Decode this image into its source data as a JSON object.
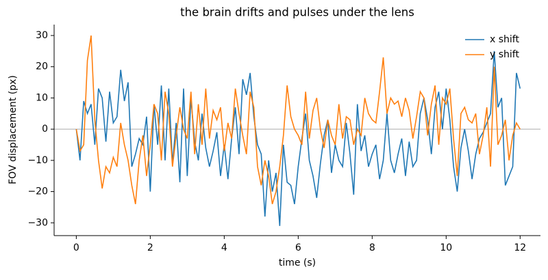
{
  "chart_data": {
    "type": "line",
    "title": "the brain drifts and pulses under the lens",
    "xlabel": "time (s)",
    "ylabel": "FOV displacement (px)",
    "x": [
      0,
      0.1,
      0.2,
      0.3,
      0.4,
      0.5,
      0.6,
      0.7,
      0.8,
      0.9,
      1,
      1.1,
      1.2,
      1.3,
      1.4,
      1.5,
      1.6,
      1.7,
      1.8,
      1.9,
      2,
      2.1,
      2.2,
      2.3,
      2.4,
      2.5,
      2.6,
      2.7,
      2.8,
      2.9,
      3,
      3.1,
      3.2,
      3.3,
      3.4,
      3.5,
      3.6,
      3.7,
      3.8,
      3.9,
      4,
      4.1,
      4.2,
      4.3,
      4.4,
      4.5,
      4.6,
      4.7,
      4.8,
      4.9,
      5,
      5.1,
      5.2,
      5.3,
      5.4,
      5.5,
      5.6,
      5.7,
      5.8,
      5.9,
      6,
      6.1,
      6.2,
      6.3,
      6.4,
      6.5,
      6.6,
      6.7,
      6.8,
      6.9,
      7,
      7.1,
      7.2,
      7.3,
      7.4,
      7.5,
      7.6,
      7.7,
      7.8,
      7.9,
      8,
      8.1,
      8.2,
      8.3,
      8.4,
      8.5,
      8.6,
      8.7,
      8.8,
      8.9,
      9,
      9.1,
      9.2,
      9.3,
      9.4,
      9.5,
      9.6,
      9.7,
      9.8,
      9.9,
      10,
      10.1,
      10.2,
      10.3,
      10.4,
      10.5,
      10.6,
      10.7,
      10.8,
      10.9,
      11,
      11.1,
      11.2,
      11.3,
      11.4,
      11.5,
      11.6,
      11.7,
      11.8,
      11.9,
      12
    ],
    "series": [
      {
        "name": "x shift",
        "color": "#1f77b4",
        "values": [
          0,
          -10,
          9,
          5,
          8,
          -5,
          13,
          10,
          -4,
          12,
          2,
          4,
          19,
          9,
          15,
          -12,
          -8,
          -3,
          -5,
          4,
          -20,
          8,
          -5,
          14,
          -10,
          13,
          -11,
          2,
          -17,
          13,
          -15,
          10,
          -4,
          -10,
          5,
          -6,
          -12,
          -7,
          -1,
          -15,
          -5,
          -16,
          -3,
          7,
          -8,
          16,
          11,
          18,
          4,
          -5,
          -8,
          -28,
          -10,
          -20,
          -14,
          -31,
          -5,
          -17,
          -18,
          -24,
          -12,
          -3,
          5,
          -10,
          -15,
          -22,
          -11,
          -2,
          3,
          -14,
          -5,
          -10,
          -12,
          2,
          -8,
          -21,
          8,
          -7,
          -2,
          -12,
          -8,
          -5,
          -16,
          -10,
          5,
          -10,
          -14,
          -8,
          -3,
          -15,
          -4,
          -12,
          -10,
          5,
          10,
          3,
          -8,
          7,
          12,
          0,
          13,
          3,
          -12,
          -20,
          -6,
          0,
          -7,
          -16,
          -8,
          -3,
          -1,
          2,
          5,
          25,
          7,
          10,
          -18,
          -15,
          -12,
          18,
          13
        ]
      },
      {
        "name": "y shift",
        "color": "#ff7f0e",
        "values": [
          0,
          -7,
          -5,
          22,
          30,
          3,
          -10,
          -19,
          -12,
          -14,
          -9,
          -12,
          2,
          -5,
          -10,
          -18,
          -24,
          -10,
          -2,
          -15,
          -5,
          8,
          5,
          -10,
          12,
          5,
          -12,
          -2,
          7,
          0,
          -3,
          12,
          -8,
          8,
          -5,
          13,
          -3,
          6,
          3,
          7,
          -7,
          2,
          -3,
          13,
          5,
          -2,
          -8,
          12,
          7,
          -12,
          -18,
          -10,
          -15,
          -24,
          -20,
          -12,
          -2,
          14,
          4,
          0,
          -2,
          -5,
          12,
          -3,
          6,
          10,
          0,
          -6,
          3,
          -2,
          -5,
          8,
          -3,
          4,
          3,
          -5,
          0,
          -2,
          10,
          5,
          3,
          2,
          12,
          23,
          5,
          10,
          8,
          9,
          4,
          10,
          6,
          -3,
          4,
          12,
          10,
          -2,
          8,
          14,
          -5,
          10,
          8,
          13,
          -3,
          -15,
          5,
          7,
          3,
          2,
          5,
          -8,
          -2,
          7,
          -12,
          20,
          -5,
          -2,
          3,
          -10,
          -2,
          2,
          0
        ]
      }
    ],
    "xlim": [
      -0.6,
      12.55
    ],
    "ylim": [
      -34.1,
      33.5
    ],
    "xticks": [
      0,
      2,
      4,
      6,
      8,
      10,
      12
    ],
    "yticks": [
      {
        "value": -30,
        "label": "−30"
      },
      {
        "value": -20,
        "label": "−20"
      },
      {
        "value": -10,
        "label": "−10"
      },
      0,
      10,
      20,
      30
    ],
    "hline": 0,
    "hline_color": "#aaaaaa",
    "legend": "upper right"
  }
}
